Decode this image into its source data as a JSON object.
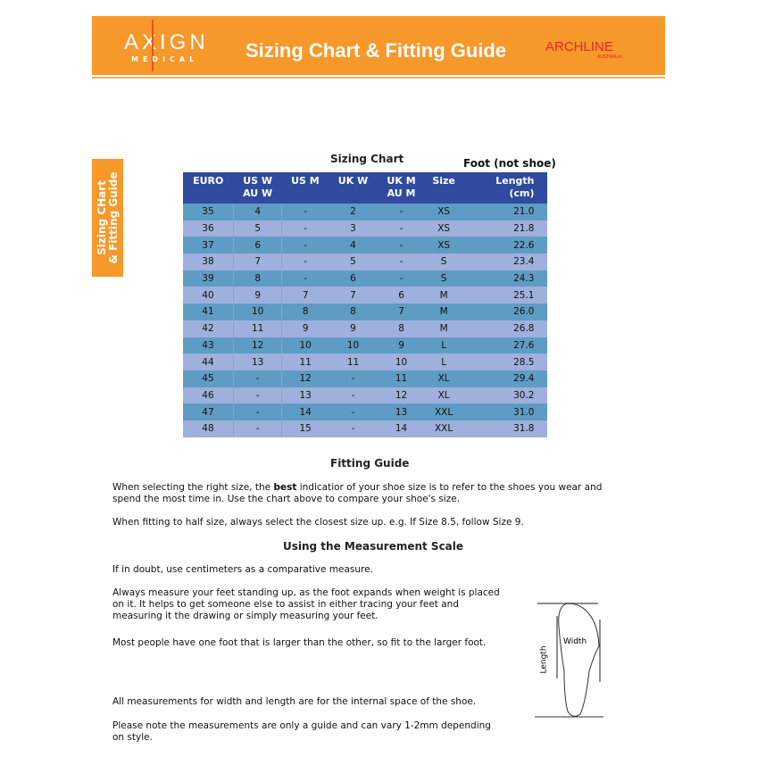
{
  "header": {
    "logo_left": "AXIGN",
    "logo_left_sub": "MEDICAL",
    "title": "Sizing Chart & Fitting Guide",
    "logo_right": "ARCHLINE",
    "logo_right_sub": "AUSTRALIA",
    "color": "#f7982a"
  },
  "side_tab": {
    "line1": "Sizing CHart",
    "line2": "& Fitting Guide"
  },
  "chart": {
    "title": "Sizing Chart",
    "foot_note": "Foot (not shoe)",
    "columns": [
      [
        "EURO",
        ""
      ],
      [
        "US W",
        "AU W"
      ],
      [
        "US M",
        ""
      ],
      [
        "UK W",
        ""
      ],
      [
        "UK M",
        "AU M"
      ],
      [
        "Size",
        ""
      ],
      [
        "Length",
        "(cm)"
      ]
    ],
    "rows": [
      [
        "35",
        "4",
        "-",
        "2",
        "-",
        "XS",
        "21.0"
      ],
      [
        "36",
        "5",
        "-",
        "3",
        "-",
        "XS",
        "21.8"
      ],
      [
        "37",
        "6",
        "-",
        "4",
        "-",
        "XS",
        "22.6"
      ],
      [
        "38",
        "7",
        "-",
        "5",
        "-",
        "S",
        "23.4"
      ],
      [
        "39",
        "8",
        "-",
        "6",
        "-",
        "S",
        "24.3"
      ],
      [
        "40",
        "9",
        "7",
        "7",
        "6",
        "M",
        "25.1"
      ],
      [
        "41",
        "10",
        "8",
        "8",
        "7",
        "M",
        "26.0"
      ],
      [
        "42",
        "11",
        "9",
        "9",
        "8",
        "M",
        "26.8"
      ],
      [
        "43",
        "12",
        "10",
        "10",
        "9",
        "L",
        "27.6"
      ],
      [
        "44",
        "13",
        "11",
        "11",
        "10",
        "L",
        "28.5"
      ],
      [
        "45",
        "-",
        "12",
        "-",
        "11",
        "XL",
        "29.4"
      ],
      [
        "46",
        "-",
        "13",
        "-",
        "12",
        "XL",
        "30.2"
      ],
      [
        "47",
        "-",
        "14",
        "-",
        "13",
        "XXL",
        "31.0"
      ],
      [
        "48",
        "-",
        "15",
        "-",
        "14",
        "XXL",
        "31.8"
      ]
    ]
  },
  "fitting": {
    "title": "Fitting Guide",
    "p1_pre": "When selecting the right size, the ",
    "p1_bold": "best",
    "p1_post": " indicatior of your shoe size is to refer to the shoes you wear and spend the most time in. Use the chart above to compare your shoe's size.",
    "p2": "When fitting to half size, always select the closest size up. e.g. If Size 8.5, follow Size 9."
  },
  "measure": {
    "title": "Using the Measurement Scale",
    "p1": "If in doubt, use centimeters as a comparative measure.",
    "p2": "Always measure your feet standing up, as the foot expands when weight is placed on it. It helps to get someone else to assist in either tracing your feet and measuring it the drawing or simply measuring your feet.",
    "p3": "Most people have one foot that is larger than the other, so fit to the larger foot.",
    "p4": "All measurements for width and length are for the internal space of the shoe.",
    "p5": "Please note the measurements are only a guide and can vary 1-2mm depending on style.",
    "diagram_width": "Width",
    "diagram_length": "Length"
  }
}
